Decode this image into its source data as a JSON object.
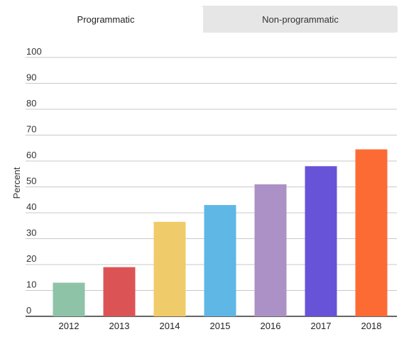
{
  "tabs": [
    {
      "label": "Programmatic",
      "active": true
    },
    {
      "label": "Non-programmatic",
      "active": false
    }
  ],
  "chart_data": {
    "type": "bar",
    "categories": [
      "2012",
      "2013",
      "2014",
      "2015",
      "2016",
      "2017",
      "2018"
    ],
    "values": [
      13,
      19,
      36.5,
      43,
      51,
      58,
      64.5
    ],
    "colors": [
      "#8ec3a7",
      "#dc5356",
      "#f0cb69",
      "#5fb7e5",
      "#ab91c5",
      "#6753d7",
      "#fd6b35"
    ],
    "ylabel": "Percent",
    "xlabel": "",
    "ylim": [
      0,
      100
    ],
    "yticks": [
      "0",
      "10",
      "20",
      "30",
      "40",
      "50",
      "60",
      "70",
      "80",
      "90",
      "100"
    ],
    "grid": true
  }
}
